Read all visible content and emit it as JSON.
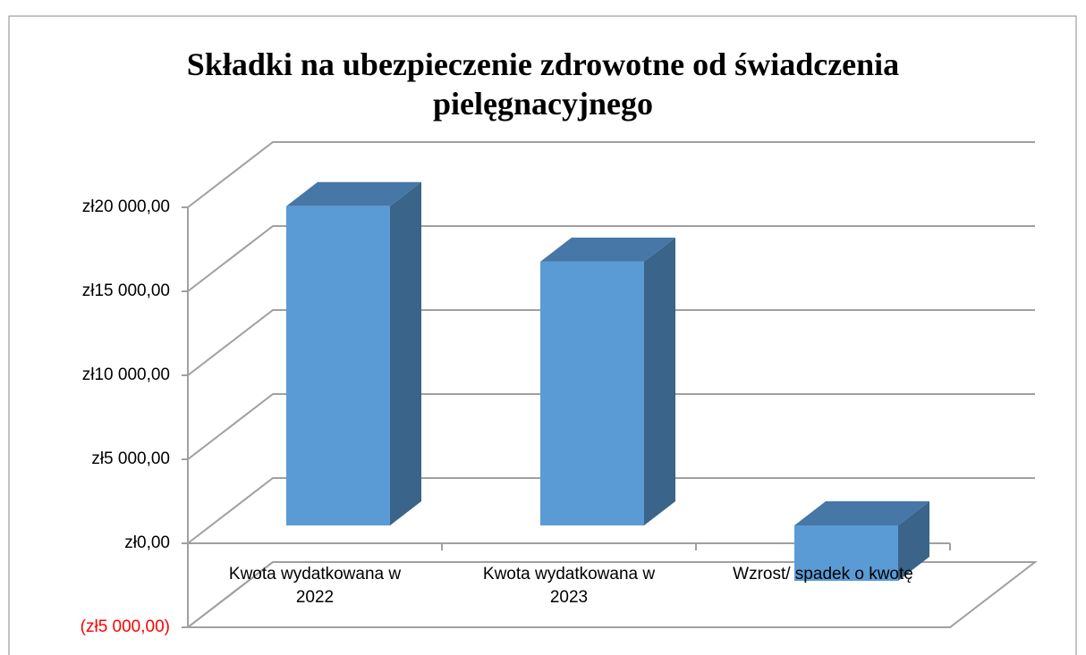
{
  "chart_data": {
    "type": "bar3d",
    "title": "Składki na ubezpieczenie zdrowotne  od świadczenia pielęgnacyjnego",
    "categories": [
      "Kwota wydatkowana w 2022",
      "Kwota wydatkowana w 2023",
      "Wzrost/ spadek o kwotę"
    ],
    "values": [
      19000,
      15700,
      -3300
    ],
    "color": "#5b9bd5",
    "ylim": [
      -5000,
      20000
    ],
    "yticks": [
      {
        "value": -5000,
        "label": "(zł5 000,00)"
      },
      {
        "value": 0,
        "label": "zł0,00"
      },
      {
        "value": 5000,
        "label": "zł5 000,00"
      },
      {
        "value": 10000,
        "label": "zł10 000,00"
      },
      {
        "value": 15000,
        "label": "zł15 000,00"
      },
      {
        "value": 20000,
        "label": "zł20 000,00"
      }
    ],
    "negative_tick_color": "#ff0000",
    "grid": true
  }
}
